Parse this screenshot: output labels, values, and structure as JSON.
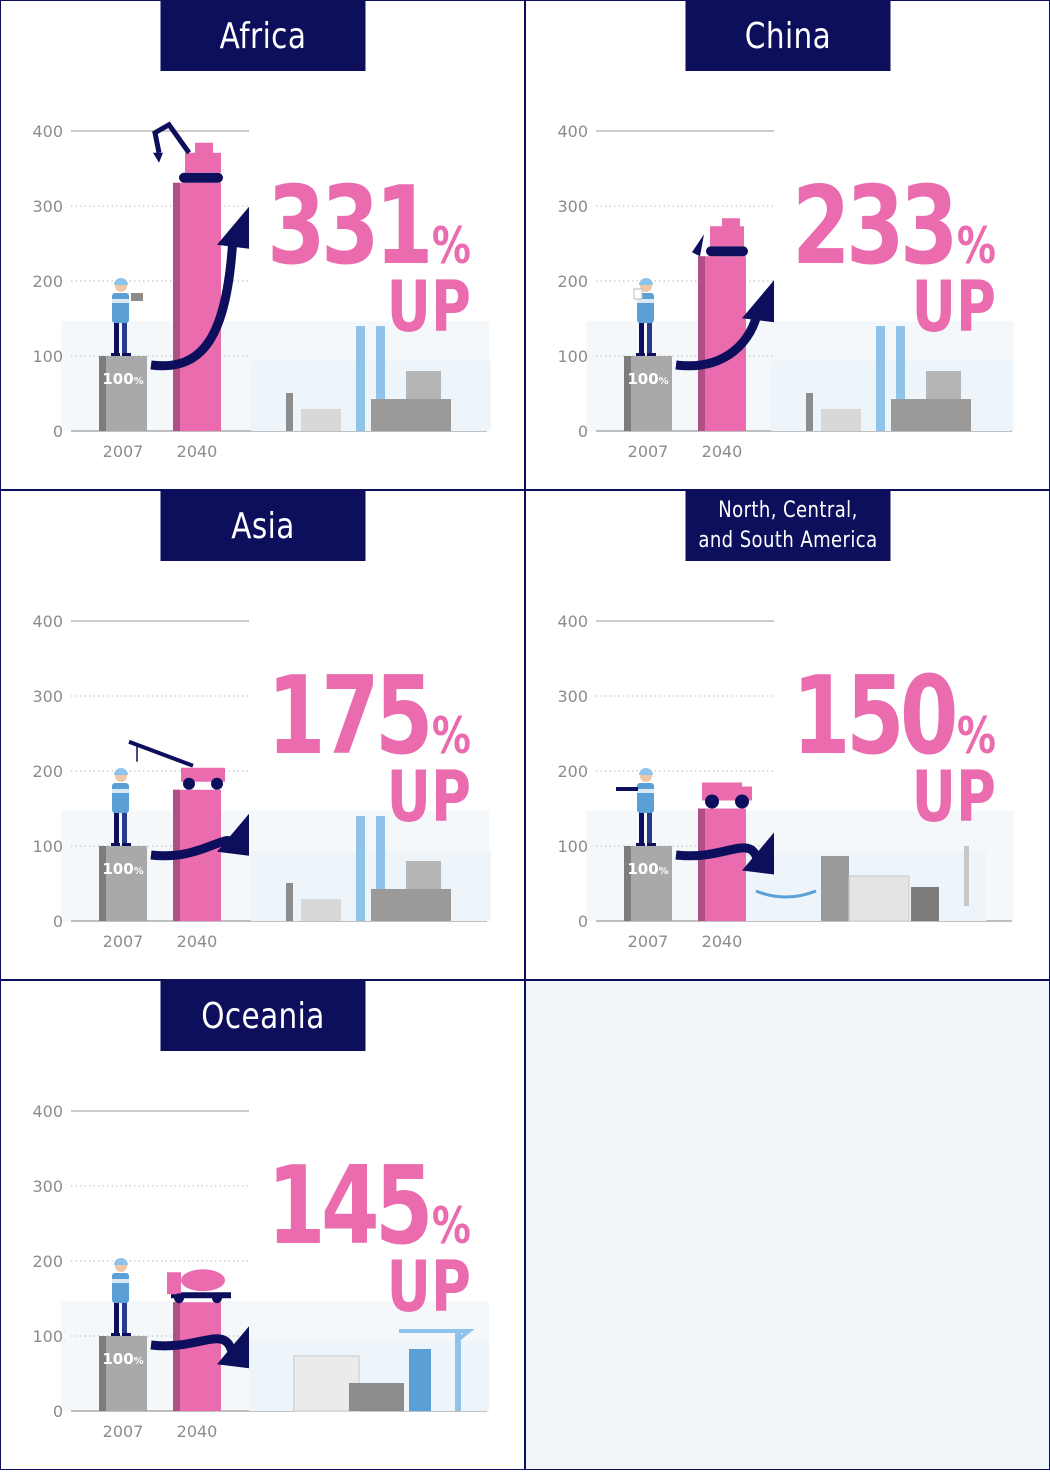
{
  "colors": {
    "navy": "#0d0f5c",
    "pink": "#ea6caf",
    "pink_dark": "#b24e86",
    "gray_bar": "#a9a9a9",
    "gray_bar_dark": "#7c7c7c",
    "axis": "#8c8c8c",
    "empty_cell": "#f1f6fa"
  },
  "chart_data": [
    {
      "type": "bar",
      "title": "Africa",
      "categories": [
        "2007",
        "2040"
      ],
      "values": [
        100,
        331
      ],
      "ylim": [
        0,
        400
      ],
      "yticks": [
        0,
        100,
        200,
        300,
        400
      ],
      "grid": true,
      "base_label": "100",
      "base_label_unit": "%",
      "headline_value": "331",
      "headline_unit": "%",
      "headline_suffix": "UP",
      "illustration": [
        "worker-with-tablet-icon",
        "excavator-icon",
        "factory-skyline-icon"
      ]
    },
    {
      "type": "bar",
      "title": "China",
      "categories": [
        "2007",
        "2040"
      ],
      "values": [
        100,
        233
      ],
      "ylim": [
        0,
        400
      ],
      "yticks": [
        0,
        100,
        200,
        300,
        400
      ],
      "grid": true,
      "base_label": "100",
      "base_label_unit": "%",
      "headline_value": "233",
      "headline_unit": "%",
      "headline_suffix": "UP",
      "illustration": [
        "worker-with-plan-icon",
        "bulldozer-icon",
        "factory-skyline-icon"
      ]
    },
    {
      "type": "bar",
      "title": "Asia",
      "categories": [
        "2007",
        "2040"
      ],
      "values": [
        100,
        175
      ],
      "ylim": [
        0,
        400
      ],
      "yticks": [
        0,
        100,
        200,
        300,
        400
      ],
      "grid": true,
      "base_label": "100",
      "base_label_unit": "%",
      "headline_value": "175",
      "headline_unit": "%",
      "headline_suffix": "UP",
      "illustration": [
        "worker-icon",
        "crane-truck-icon",
        "factory-skyline-icon"
      ]
    },
    {
      "type": "bar",
      "title": "North, Central,\nand South America",
      "categories": [
        "2007",
        "2040"
      ],
      "values": [
        100,
        150
      ],
      "ylim": [
        0,
        400
      ],
      "yticks": [
        0,
        100,
        200,
        300,
        400
      ],
      "grid": true,
      "base_label": "100",
      "base_label_unit": "%",
      "headline_value": "150",
      "headline_unit": "%",
      "headline_suffix": "UP",
      "illustration": [
        "pointing-worker-icon",
        "dump-truck-icon",
        "bridge-factory-skyline-icon"
      ]
    },
    {
      "type": "bar",
      "title": "Oceania",
      "categories": [
        "2007",
        "2040"
      ],
      "values": [
        100,
        145
      ],
      "ylim": [
        0,
        400
      ],
      "yticks": [
        0,
        100,
        200,
        300,
        400
      ],
      "grid": true,
      "base_label": "100",
      "base_label_unit": "%",
      "headline_value": "145",
      "headline_unit": "%",
      "headline_suffix": "UP",
      "illustration": [
        "saluting-worker-icon",
        "concrete-mixer-icon",
        "port-crane-skyline-icon"
      ]
    }
  ]
}
